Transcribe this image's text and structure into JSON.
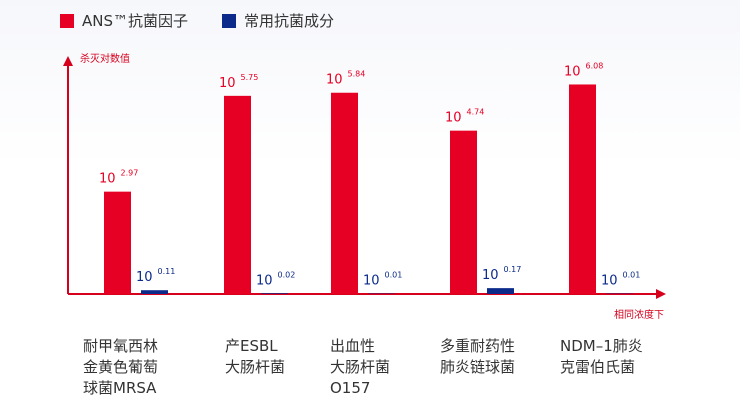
{
  "chart_data": {
    "type": "bar",
    "title": "",
    "ylabel": "杀灭对数值",
    "xlabel": "相同浓度下",
    "grid": false,
    "legend_position": "top-left",
    "ylim": [
      0,
      6.5
    ],
    "categories": [
      [
        "耐甲氧西林",
        "金黄色葡萄",
        "球菌MRSA"
      ],
      [
        "产ESBL",
        "大肠杆菌"
      ],
      [
        "出血性",
        "大肠杆菌",
        "O157"
      ],
      [
        "多重耐药性",
        "肺炎链球菌"
      ],
      [
        "NDM–1肺炎",
        "克雷伯氏菌"
      ]
    ],
    "series": [
      {
        "name": "ANS™抗菌因子",
        "color": "#e60023",
        "values": [
          2.97,
          5.75,
          5.84,
          4.74,
          6.08
        ],
        "labels": [
          {
            "base": "10",
            "exp": "2.97"
          },
          {
            "base": "10",
            "exp": "5.75"
          },
          {
            "base": "10",
            "exp": "5.84"
          },
          {
            "base": "10",
            "exp": "4.74"
          },
          {
            "base": "10",
            "exp": "6.08"
          }
        ]
      },
      {
        "name": "常用抗菌成分",
        "color": "#0b2a8a",
        "values": [
          0.11,
          0.02,
          0.01,
          0.17,
          0.01
        ],
        "labels": [
          {
            "base": "10",
            "exp": "0.11"
          },
          {
            "base": "10",
            "exp": "0.02"
          },
          {
            "base": "10",
            "exp": "0.01"
          },
          {
            "base": "10",
            "exp": "0.17"
          },
          {
            "base": "10",
            "exp": "0.01"
          }
        ]
      }
    ]
  },
  "colors": {
    "axis": "#d6001c",
    "text": "#333333"
  }
}
